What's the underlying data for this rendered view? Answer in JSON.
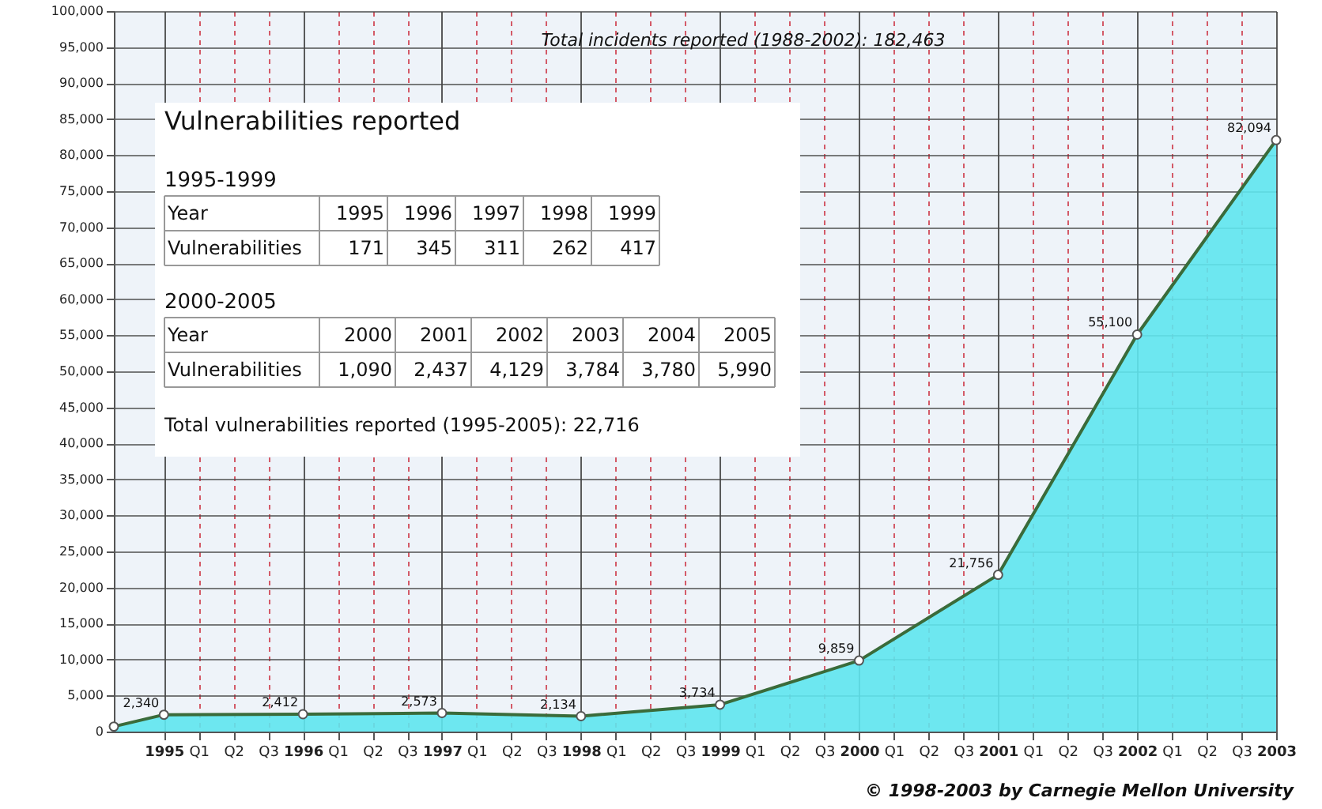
{
  "chart_data": {
    "type": "area",
    "title": "Total incidents reported (1988-2002): 182,463",
    "x": [
      1994.64,
      1995,
      1996,
      1997,
      1998,
      1999,
      2000,
      2001,
      2002,
      2003
    ],
    "series": [
      {
        "color": "#5ee6ee",
        "values": [
          700,
          2340,
          2412,
          2573,
          2134,
          3734,
          9859,
          21756,
          55100,
          82094
        ],
        "value_labels": [
          null,
          "2,340",
          "2,412",
          "2,573",
          "2,134",
          "3,734",
          "9,859",
          "21,756",
          "55,100",
          "82,094"
        ]
      }
    ],
    "xlim": [
      1994.64,
      2003
    ],
    "xticks": [
      1995,
      {
        "value": 1995.25,
        "label": "Q1"
      },
      {
        "value": 1995.5,
        "label": "Q2"
      },
      {
        "value": 1995.75,
        "label": "Q3"
      },
      1996,
      {
        "value": 1996.25,
        "label": "Q1"
      },
      {
        "value": 1996.5,
        "label": "Q2"
      },
      {
        "value": 1996.75,
        "label": "Q3"
      },
      1997,
      {
        "value": 1997.25,
        "label": "Q1"
      },
      {
        "value": 1997.5,
        "label": "Q2"
      },
      {
        "value": 1997.75,
        "label": "Q3"
      },
      1998,
      {
        "value": 1998.25,
        "label": "Q1"
      },
      {
        "value": 1998.5,
        "label": "Q2"
      },
      {
        "value": 1998.75,
        "label": "Q3"
      },
      1999,
      {
        "value": 1999.25,
        "label": "Q1"
      },
      {
        "value": 1999.5,
        "label": "Q2"
      },
      {
        "value": 1999.75,
        "label": "Q3"
      },
      2000,
      {
        "value": 2000.25,
        "label": "Q1"
      },
      {
        "value": 2000.5,
        "label": "Q2"
      },
      {
        "value": 2000.75,
        "label": "Q3"
      },
      2001,
      {
        "value": 2001.25,
        "label": "Q1"
      },
      {
        "value": 2001.5,
        "label": "Q2"
      },
      {
        "value": 2001.75,
        "label": "Q3"
      },
      2002,
      {
        "value": 2002.25,
        "label": "Q1"
      },
      {
        "value": 2002.5,
        "label": "Q2"
      },
      {
        "value": 2002.75,
        "label": "Q3"
      },
      2003
    ],
    "ylim": [
      0,
      100000
    ],
    "yticks": [
      {
        "value": 0,
        "label": "0"
      },
      {
        "value": 5000,
        "label": "5,000"
      },
      {
        "value": 10000,
        "label": "10,000"
      },
      {
        "value": 15000,
        "label": "15,000"
      },
      {
        "value": 20000,
        "label": "20,000"
      },
      {
        "value": 25000,
        "label": "25,000"
      },
      {
        "value": 30000,
        "label": "30,000"
      },
      {
        "value": 35000,
        "label": "35,000"
      },
      {
        "value": 40000,
        "label": "40,000"
      },
      {
        "value": 45000,
        "label": "45,000"
      },
      {
        "value": 50000,
        "label": "50,000"
      },
      {
        "value": 55000,
        "label": "55,000"
      },
      {
        "value": 60000,
        "label": "60,000"
      },
      {
        "value": 65000,
        "label": "65,000"
      },
      {
        "value": 70000,
        "label": "70,000"
      },
      {
        "value": 75000,
        "label": "75,000"
      },
      {
        "value": 80000,
        "label": "80,000"
      },
      {
        "value": 85000,
        "label": "85,000"
      },
      {
        "value": 90000,
        "label": "90,000"
      },
      {
        "value": 95000,
        "label": "95,000"
      },
      {
        "value": 100000,
        "label": "100,000"
      }
    ],
    "grid": true,
    "marker": "circle",
    "annotations": [
      "Vulnerabilities reported",
      "1995-1999",
      "Year",
      "1995",
      "1996",
      "1997",
      "1998",
      "1999",
      "Vulnerabilities",
      "171",
      "345",
      "311",
      "262",
      "417",
      "2000-2005",
      "Year",
      "2000",
      "2001",
      "2002",
      "2003",
      "2004",
      "2005",
      "Vulnerabilities",
      "1,090",
      "2,437",
      "4,129",
      "3,784",
      "3,780",
      "5,990",
      "Total vulnerabilities reported (1995-2005): 22,716",
      "© 1998-2003 by Carnegie Mellon University"
    ]
  }
}
